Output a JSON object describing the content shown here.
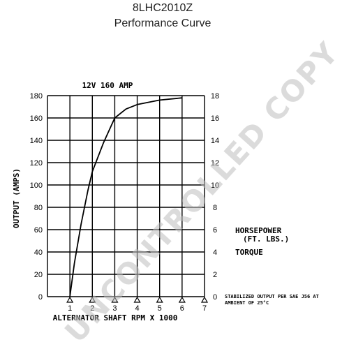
{
  "header": {
    "model": "8LHC2010Z",
    "subtitle": "Performance Curve"
  },
  "watermark": "UNCONTROLLED COPY",
  "chart_data": {
    "type": "line",
    "title": "12V 160 AMP",
    "xlabel": "ALTERNATOR SHAFT RPM X 1000",
    "ylabel": "OUTPUT (AMPS)",
    "xlim": [
      0,
      7
    ],
    "ylim": [
      0,
      180
    ],
    "y2lim": [
      0,
      18
    ],
    "x_ticks": [
      1,
      2,
      3,
      4,
      5,
      6,
      7
    ],
    "y_ticks": [
      0,
      20,
      40,
      60,
      80,
      100,
      120,
      140,
      160,
      180
    ],
    "y2_ticks": [
      0,
      2,
      4,
      6,
      8,
      10,
      12,
      14,
      16,
      18
    ],
    "grid": true,
    "series": [
      {
        "values": [
          [
            1.0,
            0
          ],
          [
            1.2,
            30
          ],
          [
            1.5,
            65
          ],
          [
            1.8,
            95
          ],
          [
            2.0,
            112
          ],
          [
            2.5,
            138
          ],
          [
            3.0,
            160
          ],
          [
            3.5,
            168
          ],
          [
            4.0,
            172
          ],
          [
            5.0,
            176
          ],
          [
            6.0,
            178
          ]
        ]
      }
    ],
    "annotations": {
      "horsepower": "HORSEPOWER",
      "ft_lbs": "(FT. LBS.)",
      "torque": "TORQUE",
      "note_line1": "STABILIZED OUTPUT PER SAE J56 AT",
      "note_line2": "AMBIENT OF 25°C"
    }
  }
}
